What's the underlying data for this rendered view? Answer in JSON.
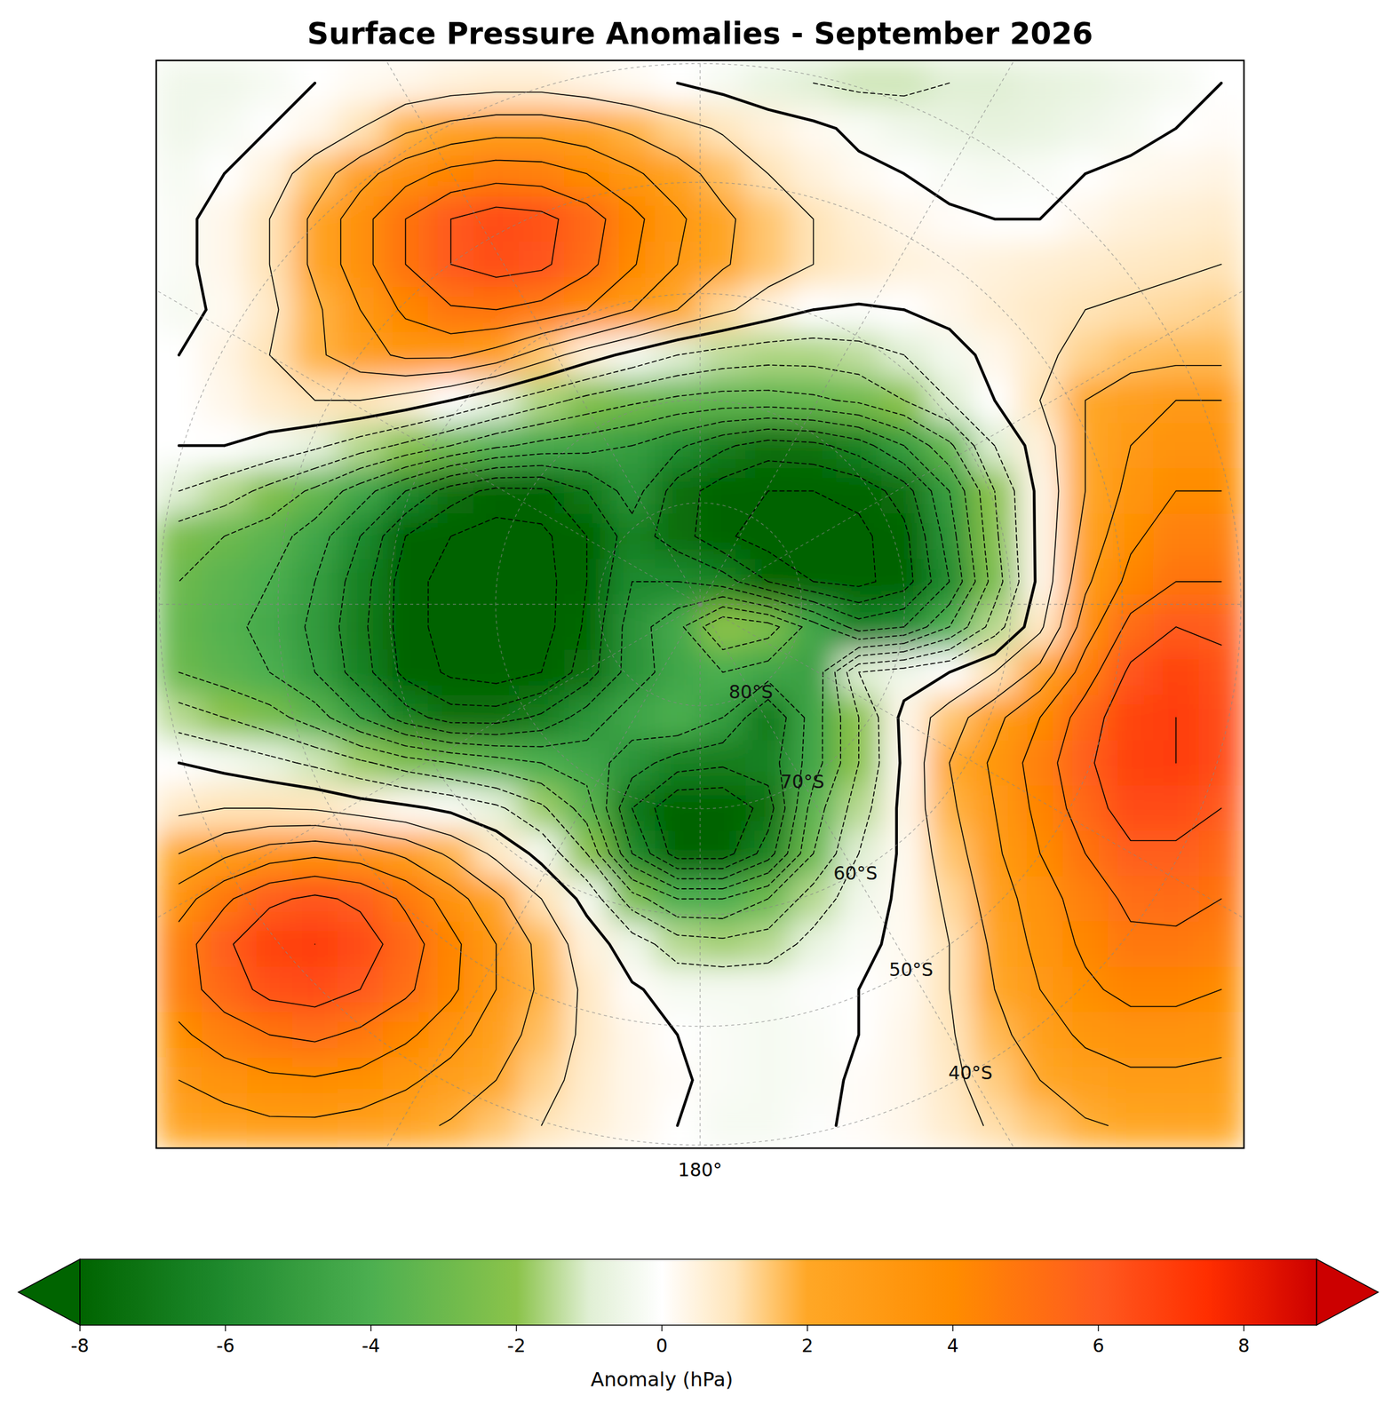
{
  "chart_data": {
    "type": "heatmap",
    "title": "Surface Pressure Anomalies - September 2026",
    "xlim": [
      -0.469,
      0.469
    ],
    "ylim": [
      -0.469,
      0.469
    ],
    "cells": [
      [
        -0.5,
        -0.5,
        -0.3,
        0,
        0.2,
        0.3,
        0.5,
        0.6,
        0.6,
        0.4,
        0.2,
        0,
        -0.3,
        -0.7,
        -1,
        -1.2,
        -1.2,
        -1,
        -1,
        -0.8,
        -0.7,
        -0.5,
        -0.3,
        0
      ],
      [
        -0.5,
        -0.3,
        0,
        0.3,
        1,
        1.8,
        2.3,
        2.6,
        2.6,
        2.3,
        1.8,
        1.3,
        0.9,
        0.5,
        0.2,
        -0.2,
        -0.5,
        -0.7,
        -0.8,
        -0.7,
        -0.5,
        -0.3,
        0,
        0.1
      ],
      [
        -0.3,
        0,
        0.5,
        1.5,
        2.6,
        3.6,
        4.3,
        4.6,
        4.5,
        4,
        3.2,
        2.4,
        1.6,
        1,
        0.5,
        0.2,
        0,
        -0.2,
        -0.3,
        -0.2,
        0,
        0.2,
        0.3,
        0.4
      ],
      [
        -0.2,
        0.3,
        1,
        2.2,
        3.6,
        5,
        6,
        6.5,
        6.3,
        5.5,
        4.3,
        3.2,
        2.2,
        1.5,
        1,
        0.6,
        0.3,
        0.1,
        0,
        0,
        0.3,
        0.5,
        0.6,
        0.7
      ],
      [
        -0.2,
        0.3,
        1,
        2.2,
        3.6,
        5,
        6,
        6.4,
        6.2,
        5.3,
        4.1,
        3,
        2.1,
        1.5,
        1,
        0.7,
        0.5,
        0.4,
        0.5,
        0.6,
        0.7,
        0.8,
        0.9,
        1
      ],
      [
        -0.3,
        0.2,
        0.8,
        1.8,
        3,
        4.2,
        4.9,
        5,
        4.7,
        4,
        3,
        2,
        1.2,
        0.5,
        0,
        -0.1,
        0,
        0.3,
        0.6,
        0.8,
        1,
        1.1,
        1.2,
        1.3
      ],
      [
        0,
        0.4,
        1,
        1.8,
        2.6,
        3.2,
        3.2,
        2.6,
        1.5,
        0.5,
        -0.3,
        -1,
        -1.4,
        -1.6,
        -1.6,
        -1.4,
        -1,
        -0.4,
        0.3,
        0.8,
        1.3,
        1.6,
        1.7,
        1.7
      ],
      [
        0,
        0.3,
        0.7,
        1,
        1,
        0.6,
        0,
        -0.8,
        -1.6,
        -2.3,
        -2.8,
        -3.2,
        -3.4,
        -3.4,
        -3.2,
        -2.8,
        -2,
        -1,
        0,
        1,
        2,
        2.6,
        3,
        3
      ],
      [
        0,
        0,
        -0.3,
        -0.8,
        -1.5,
        -2.2,
        -3,
        -3.8,
        -4.3,
        -4.6,
        -5,
        -5.8,
        -6.8,
        -7.5,
        -7.3,
        -6.5,
        -5,
        -3.2,
        -1,
        0.5,
        2,
        3,
        3.5,
        3.5
      ],
      [
        -1,
        -1.5,
        -2.3,
        -3.2,
        -4.5,
        -6,
        -7.5,
        -8.3,
        -8.2,
        -7,
        -5.5,
        -7.5,
        -8.5,
        -9,
        -9,
        -8.7,
        -7.5,
        -5,
        -2,
        0.3,
        2,
        3.3,
        4,
        4
      ],
      [
        -2.5,
        -3,
        -3.5,
        -4.5,
        -6,
        -8,
        -9,
        -9.5,
        -9.3,
        -8,
        -6.5,
        -7.5,
        -8.8,
        -9.5,
        -9.5,
        -9.3,
        -8.3,
        -5.5,
        -2.2,
        0.3,
        2.3,
        3.8,
        4.5,
        4.5
      ],
      [
        -3,
        -3.5,
        -4,
        -5,
        -6.5,
        -8.5,
        -9.5,
        -10,
        -9.5,
        -8,
        -6,
        -6,
        -6.5,
        -8,
        -9,
        -9.3,
        -8.5,
        -6,
        -2.5,
        0.3,
        2.8,
        4.3,
        5,
        5
      ],
      [
        -3.2,
        -3.7,
        -4.3,
        -5.2,
        -6.7,
        -8.5,
        -9.5,
        -10,
        -9.5,
        -7.8,
        -5.5,
        -4.3,
        -2,
        -2.5,
        -4.5,
        -6.5,
        -6,
        -4,
        -1.5,
        0.8,
        3.5,
        5.3,
        6,
        5.8
      ],
      [
        -3,
        -3.5,
        -4,
        -5,
        -6.5,
        -8.3,
        -9.2,
        -9.5,
        -9,
        -7.5,
        -5.5,
        -4.5,
        -4,
        -4.5,
        -4.8,
        -1,
        -0.5,
        0,
        1,
        2.3,
        4.5,
        6.2,
        6.8,
        6.3
      ],
      [
        -1.5,
        -2,
        -2.6,
        -3.5,
        -5,
        -6.5,
        -7.5,
        -7.5,
        -6.8,
        -5.5,
        -4.5,
        -4,
        -5,
        -7,
        -4.5,
        -2,
        0.3,
        1.5,
        2.7,
        4,
        5.5,
        6.7,
        7,
        6.5
      ],
      [
        0,
        -0.3,
        -0.7,
        -1.2,
        -1.8,
        -2.5,
        -3,
        -3.5,
        -4,
        -4.5,
        -5.5,
        -6.5,
        -6.8,
        -6.5,
        -4.5,
        -2,
        0.2,
        2,
        3.2,
        4.5,
        5.8,
        6.8,
        7,
        6.5
      ],
      [
        0.8,
        1,
        1,
        0.9,
        0.5,
        0.2,
        -0.2,
        -0.8,
        -1.8,
        -3.5,
        -7,
        -9,
        -9,
        -7.5,
        -3.5,
        -1.5,
        0.3,
        1.8,
        3,
        4.3,
        5.5,
        6.5,
        6.5,
        6
      ],
      [
        2,
        2.8,
        3.5,
        3.8,
        3.5,
        2.8,
        1.8,
        0.8,
        -0.3,
        -2,
        -6,
        -8.5,
        -8.5,
        -6.5,
        -3,
        -1,
        0.2,
        1.5,
        2.8,
        4,
        5,
        5.8,
        5.8,
        5.5
      ],
      [
        3.5,
        4.8,
        5.8,
        6.2,
        5.8,
        4.8,
        3.5,
        2.2,
        1,
        -0.3,
        -2.5,
        -4,
        -4,
        -3,
        -1.5,
        -0.5,
        0.2,
        1.2,
        2.5,
        3.5,
        4.5,
        5.2,
        5.3,
        5
      ],
      [
        4.5,
        5.8,
        6.8,
        7,
        6.5,
        5.5,
        4.3,
        3,
        1.7,
        0.5,
        -0.5,
        -1.5,
        -1.7,
        -1.5,
        -0.7,
        -0.2,
        0.2,
        1,
        2.2,
        3.3,
        4.2,
        4.8,
        4.8,
        4.5
      ],
      [
        4.5,
        5.5,
        6.3,
        6.5,
        6,
        5.2,
        4.2,
        3,
        1.8,
        0.8,
        0.1,
        -0.3,
        -0.3,
        -0.3,
        -0.1,
        0,
        0.2,
        1,
        2,
        3,
        3.8,
        4.3,
        4.3,
        4
      ],
      [
        3.8,
        4.5,
        5,
        5.2,
        4.8,
        4.2,
        3.4,
        2.5,
        1.6,
        0.8,
        0.3,
        0,
        -0.2,
        -0.3,
        -0.2,
        0,
        0.3,
        0.9,
        1.7,
        2.5,
        3.2,
        3.5,
        3.5,
        3.3
      ],
      [
        3,
        3.5,
        3.8,
        3.9,
        3.7,
        3.2,
        2.6,
        2,
        1.3,
        0.7,
        0.3,
        0.1,
        -0.2,
        -0.3,
        -0.2,
        0.1,
        0.3,
        0.8,
        1.4,
        2,
        2.5,
        2.8,
        2.8,
        2.7
      ],
      [
        2.2,
        2.5,
        2.8,
        2.8,
        2.6,
        2.3,
        1.9,
        1.5,
        1,
        0.6,
        0.3,
        0,
        -0.3,
        -0.3,
        -0.1,
        0.1,
        0.3,
        0.7,
        1.1,
        1.5,
        1.9,
        2.1,
        2.2,
        2.1
      ]
    ],
    "contour_levels": [
      -9,
      -8,
      -7,
      -6,
      -5,
      -4,
      -3,
      -2,
      -1,
      0,
      1,
      2,
      3,
      4,
      5,
      6,
      7
    ],
    "colorbar": {
      "label": "Anomaly (hPa)",
      "range": [
        -8,
        9
      ],
      "ticks": [
        -8,
        -6,
        -4,
        -2,
        0,
        2,
        4,
        6,
        8
      ]
    },
    "lat_circles": [
      {
        "value": -80,
        "label": "80°S"
      },
      {
        "value": -70,
        "label": "70°S"
      },
      {
        "value": -60,
        "label": "60°S"
      },
      {
        "value": -50,
        "label": "50°S"
      },
      {
        "value": -40,
        "label": "40°S"
      }
    ],
    "lat_label_lon": 150,
    "meridians": [
      0,
      30,
      60,
      90,
      120,
      150,
      180,
      210,
      240,
      270,
      300,
      330
    ],
    "lon_labels": [
      {
        "value": 180,
        "label": "180°"
      }
    ]
  }
}
